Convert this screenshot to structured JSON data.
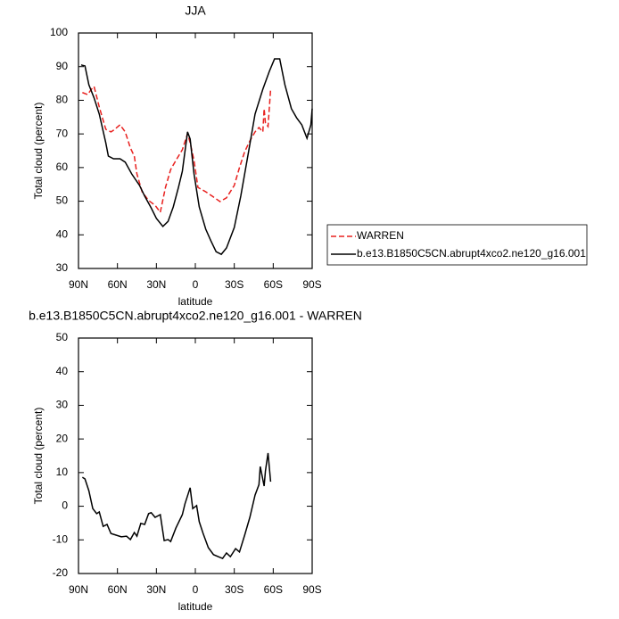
{
  "chart_data": [
    {
      "type": "line",
      "title": "JJA",
      "xlabel": "latitude",
      "ylabel": "Total cloud (percent)",
      "xlim": [
        90,
        -90
      ],
      "xticks": [
        {
          "value": 90,
          "label": "90N"
        },
        {
          "value": 60,
          "label": "60N"
        },
        {
          "value": 30,
          "label": "30N"
        },
        0,
        {
          "value": -30,
          "label": "30S"
        },
        {
          "value": -60,
          "label": "60S"
        },
        {
          "value": -90,
          "label": "90S"
        }
      ],
      "ylim": [
        30,
        100
      ],
      "yticks": [
        30,
        40,
        50,
        60,
        70,
        80,
        90,
        100
      ],
      "legend": "right",
      "series": [
        {
          "name": "WARREN",
          "color": "#e8201e",
          "linestyle": "dashed",
          "x": [
            87,
            83,
            80,
            78,
            74,
            69,
            65,
            63,
            58,
            54,
            50,
            47,
            45,
            41,
            36,
            31,
            27,
            23,
            19,
            15,
            10,
            6,
            4,
            1,
            -2,
            -8,
            -13,
            -19,
            -24,
            -30,
            -34,
            -38,
            -42,
            -46,
            -49,
            -52,
            -53,
            -54,
            -56,
            -58
          ],
          "values": [
            82.3,
            81.7,
            83.3,
            84.1,
            78,
            71.4,
            70.6,
            71.1,
            72.7,
            70.6,
            65.8,
            63.4,
            58.1,
            52.8,
            50.2,
            48.8,
            46.7,
            54.1,
            59.4,
            62.1,
            65.3,
            70.1,
            67.4,
            62.1,
            54.1,
            52.8,
            51.5,
            49.9,
            51,
            54.7,
            60,
            64.7,
            67.9,
            70.6,
            71.9,
            70.6,
            77.5,
            73.2,
            72.2,
            83.3
          ]
        },
        {
          "name": "b.e13.B1850C5CN.abrupt4xco2.ne120_g16.001",
          "color": "#000000",
          "linestyle": "solid",
          "x": [
            88,
            85,
            82,
            78,
            74,
            69,
            67,
            63,
            58,
            54,
            49,
            43,
            39,
            34,
            30,
            25,
            21,
            17,
            13,
            10,
            6,
            4,
            1,
            -3,
            -8,
            -12,
            -16,
            -20,
            -24,
            -30,
            -35,
            -41,
            -46,
            -52,
            -57,
            -61,
            -65,
            -69,
            -74,
            -78,
            -82,
            -86,
            -89,
            -90
          ],
          "values": [
            90.5,
            90.2,
            84.6,
            80.7,
            75.9,
            67.4,
            63.4,
            62.6,
            62.6,
            61.6,
            58.1,
            54.7,
            51.5,
            48,
            44.9,
            42.5,
            44,
            48.3,
            54.1,
            58.9,
            70.6,
            68.5,
            58.1,
            48.3,
            41.7,
            38.2,
            35,
            34.2,
            36.1,
            42.2,
            51.5,
            64.7,
            75.9,
            83.3,
            88.6,
            92.3,
            92.3,
            84.6,
            77.5,
            74.8,
            72.7,
            68.7,
            72.7,
            77.5
          ]
        }
      ]
    },
    {
      "type": "line",
      "title": "b.e13.B1850C5CN.abrupt4xco2.ne120_g16.001 - WARREN",
      "xlabel": "latitude",
      "ylabel": "Total cloud (percent)",
      "xlim": [
        90,
        -90
      ],
      "xticks": [
        {
          "value": 90,
          "label": "90N"
        },
        {
          "value": 60,
          "label": "60N"
        },
        {
          "value": 30,
          "label": "30N"
        },
        0,
        {
          "value": -30,
          "label": "30S"
        },
        {
          "value": -60,
          "label": "60S"
        },
        {
          "value": -90,
          "label": "90S"
        }
      ],
      "ylim": [
        -20,
        50
      ],
      "yticks": [
        -20,
        -10,
        0,
        10,
        20,
        30,
        40,
        50
      ],
      "series": [
        {
          "color": "#000000",
          "linestyle": "solid",
          "x": [
            87,
            85,
            82,
            79,
            76,
            74,
            71,
            68,
            65,
            61,
            57,
            53,
            50,
            47,
            45,
            42,
            39,
            36,
            34,
            31,
            27,
            24,
            21,
            19,
            15,
            10,
            8,
            4,
            2,
            -1,
            -3,
            -6,
            -10,
            -14,
            -19,
            -21,
            -24,
            -27,
            -31,
            -34,
            -38,
            -42,
            -46,
            -49,
            -50,
            -53,
            -54,
            -56,
            -58
          ],
          "values": [
            8.6,
            8.1,
            4.6,
            -0.7,
            -2.2,
            -1.7,
            -6,
            -5.4,
            -8.1,
            -8.6,
            -9.1,
            -8.9,
            -9.9,
            -7.8,
            -8.9,
            -5.1,
            -5.4,
            -2.2,
            -1.9,
            -3.3,
            -2.5,
            -10.2,
            -9.9,
            -10.5,
            -6.5,
            -2.5,
            0.7,
            5.5,
            -0.7,
            0.2,
            -4.6,
            -8.1,
            -12.3,
            -14.4,
            -15.2,
            -15.5,
            -13.9,
            -15,
            -12.6,
            -13.6,
            -8.6,
            -3.3,
            3.3,
            6.4,
            11.8,
            6,
            10.5,
            15.8,
            7.3
          ]
        }
      ]
    }
  ]
}
